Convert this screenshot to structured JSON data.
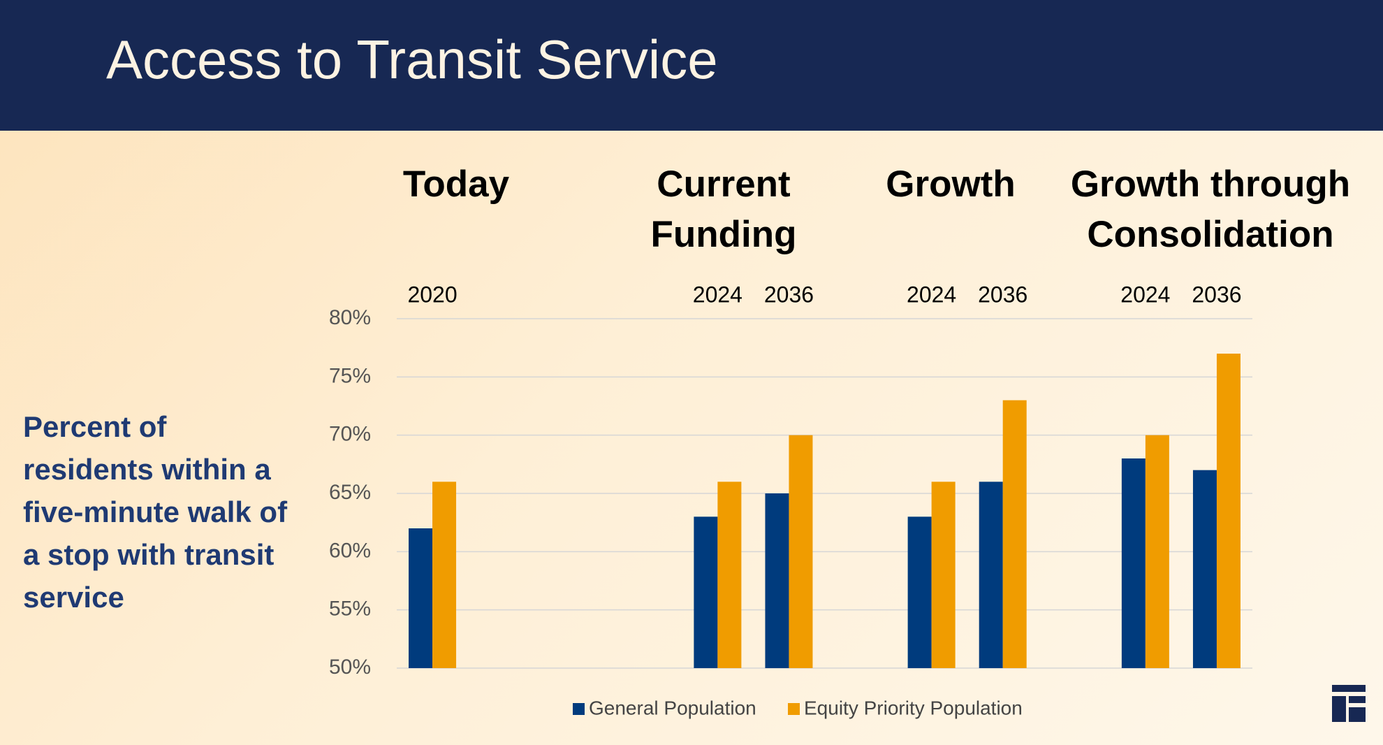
{
  "chart_data": {
    "type": "bar",
    "title": "Access to Transit Service",
    "ylabel": "Percent of residents within a five-minute walk of a stop with transit service",
    "group_labels": [
      "Today",
      "Current Funding",
      "Growth",
      "Growth through Consolidation"
    ],
    "categories": [
      "2020",
      null,
      null,
      null,
      "2024",
      "2036",
      null,
      "2024",
      "2036",
      null,
      "2024",
      "2036"
    ],
    "series": [
      {
        "name": "General Population",
        "color": "#003b7d",
        "values": [
          62,
          null,
          null,
          null,
          63,
          65,
          null,
          63,
          66,
          null,
          68,
          67
        ]
      },
      {
        "name": "Equity Priority Population",
        "color": "#f09c00",
        "values": [
          66,
          null,
          null,
          null,
          66,
          70,
          null,
          66,
          73,
          null,
          70,
          77
        ]
      }
    ],
    "ylim": [
      50,
      80
    ],
    "yticks": [
      {
        "value": 50,
        "label": "50%"
      },
      {
        "value": 55,
        "label": "55%"
      },
      {
        "value": 60,
        "label": "60%"
      },
      {
        "value": 65,
        "label": "65%"
      },
      {
        "value": 70,
        "label": "70%"
      },
      {
        "value": 75,
        "label": "75%"
      },
      {
        "value": 80,
        "label": "80%"
      }
    ],
    "grid": true
  }
}
